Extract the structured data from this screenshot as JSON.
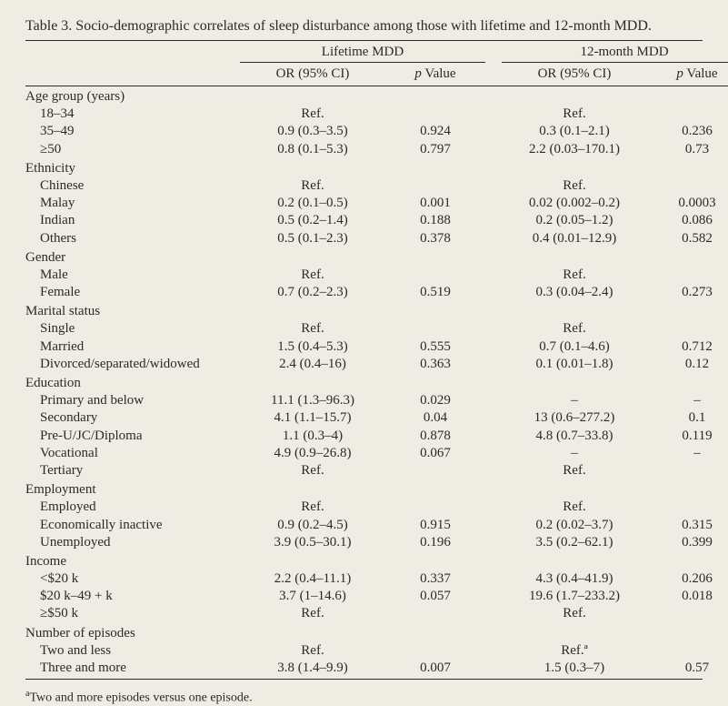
{
  "caption": "Table 3. Socio-demographic correlates of sleep disturbance among those with lifetime and 12-month MDD.",
  "group_headers": {
    "lifetime": "Lifetime MDD",
    "month12": "12-month MDD"
  },
  "sub_headers": {
    "or": "OR (95% CI)",
    "p_prefix": "p",
    "p_suffix": " Value"
  },
  "sections": [
    {
      "title": "Age group (years)",
      "rows": [
        {
          "label": "18–34",
          "l_or": "Ref.",
          "l_p": "",
          "m_or": "Ref.",
          "m_p": ""
        },
        {
          "label": "35–49",
          "l_or": "0.9 (0.3–3.5)",
          "l_p": "0.924",
          "m_or": "0.3 (0.1–2.1)",
          "m_p": "0.236"
        },
        {
          "label": "≥50",
          "l_or": "0.8 (0.1–5.3)",
          "l_p": "0.797",
          "m_or": "2.2 (0.03–170.1)",
          "m_p": "0.73"
        }
      ]
    },
    {
      "title": "Ethnicity",
      "rows": [
        {
          "label": "Chinese",
          "l_or": "Ref.",
          "l_p": "",
          "m_or": "Ref.",
          "m_p": ""
        },
        {
          "label": "Malay",
          "l_or": "0.2 (0.1–0.5)",
          "l_p": "0.001",
          "m_or": "0.02 (0.002–0.2)",
          "m_p": "0.0003"
        },
        {
          "label": "Indian",
          "l_or": "0.5 (0.2–1.4)",
          "l_p": "0.188",
          "m_or": "0.2 (0.05–1.2)",
          "m_p": "0.086"
        },
        {
          "label": "Others",
          "l_or": "0.5 (0.1–2.3)",
          "l_p": "0.378",
          "m_or": "0.4 (0.01–12.9)",
          "m_p": "0.582"
        }
      ]
    },
    {
      "title": "Gender",
      "rows": [
        {
          "label": "Male",
          "l_or": "Ref.",
          "l_p": "",
          "m_or": "Ref.",
          "m_p": ""
        },
        {
          "label": "Female",
          "l_or": "0.7 (0.2–2.3)",
          "l_p": "0.519",
          "m_or": "0.3 (0.04–2.4)",
          "m_p": "0.273"
        }
      ]
    },
    {
      "title": "Marital status",
      "rows": [
        {
          "label": "Single",
          "l_or": "Ref.",
          "l_p": "",
          "m_or": "Ref.",
          "m_p": ""
        },
        {
          "label": "Married",
          "l_or": "1.5 (0.4–5.3)",
          "l_p": "0.555",
          "m_or": "0.7 (0.1–4.6)",
          "m_p": "0.712"
        },
        {
          "label": "Divorced/separated/widowed",
          "l_or": "2.4 (0.4–16)",
          "l_p": "0.363",
          "m_or": "0.1 (0.01–1.8)",
          "m_p": "0.12"
        }
      ]
    },
    {
      "title": "Education",
      "rows": [
        {
          "label": "Primary and below",
          "l_or": "11.1 (1.3–96.3)",
          "l_p": "0.029",
          "m_or": "–",
          "m_p": "–"
        },
        {
          "label": "Secondary",
          "l_or": "4.1 (1.1–15.7)",
          "l_p": "0.04",
          "m_or": "13 (0.6–277.2)",
          "m_p": "0.1"
        },
        {
          "label": "Pre-U/JC/Diploma",
          "l_or": "1.1 (0.3–4)",
          "l_p": "0.878",
          "m_or": "4.8 (0.7–33.8)",
          "m_p": "0.119"
        },
        {
          "label": "Vocational",
          "l_or": "4.9 (0.9–26.8)",
          "l_p": "0.067",
          "m_or": "–",
          "m_p": "–"
        },
        {
          "label": "Tertiary",
          "l_or": "Ref.",
          "l_p": "",
          "m_or": "Ref.",
          "m_p": ""
        }
      ]
    },
    {
      "title": "Employment",
      "rows": [
        {
          "label": "Employed",
          "l_or": "Ref.",
          "l_p": "",
          "m_or": "Ref.",
          "m_p": ""
        },
        {
          "label": "Economically inactive",
          "l_or": "0.9 (0.2–4.5)",
          "l_p": "0.915",
          "m_or": "0.2 (0.02–3.7)",
          "m_p": "0.315"
        },
        {
          "label": "Unemployed",
          "l_or": "3.9 (0.5–30.1)",
          "l_p": "0.196",
          "m_or": "3.5 (0.2–62.1)",
          "m_p": "0.399"
        }
      ]
    },
    {
      "title": "Income",
      "rows": [
        {
          "label": "<$20 k",
          "l_or": "2.2 (0.4–11.1)",
          "l_p": "0.337",
          "m_or": "4.3 (0.4–41.9)",
          "m_p": "0.206"
        },
        {
          "label": "$20 k–49 + k",
          "l_or": "3.7 (1–14.6)",
          "l_p": "0.057",
          "m_or": "19.6 (1.7–233.2)",
          "m_p": "0.018"
        },
        {
          "label": "≥$50 k",
          "l_or": "Ref.",
          "l_p": "",
          "m_or": "Ref.",
          "m_p": ""
        }
      ]
    },
    {
      "title": "Number of episodes",
      "rows": [
        {
          "label": "Two and less",
          "l_or": "Ref.",
          "l_p": "",
          "m_or": "Ref.ª",
          "m_p": ""
        },
        {
          "label": "Three and more",
          "l_or": "3.8 (1.4–9.9)",
          "l_p": "0.007",
          "m_or": "1.5 (0.3–7)",
          "m_p": "0.57"
        }
      ]
    }
  ],
  "footnote_marker": "a",
  "footnote_text": "Two and more episodes versus one episode."
}
